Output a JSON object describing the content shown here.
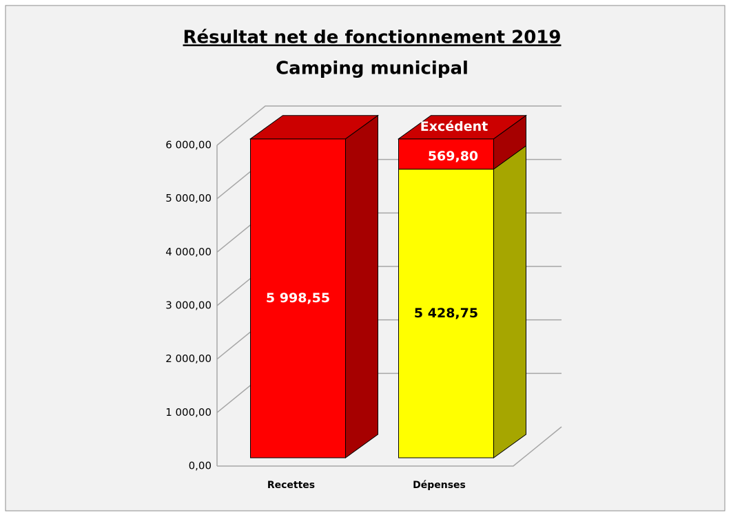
{
  "chart_data": {
    "type": "bar3d_stacked",
    "title": "Résultat net de fonctionnement 2019",
    "subtitle": "Camping municipal",
    "categories": [
      "Recettes",
      "Dépenses"
    ],
    "series": [
      {
        "colors": [
          "#ff0000",
          "#ffff00"
        ],
        "values": [
          5998.55,
          5428.75
        ],
        "value_labels": [
          "5 998,55",
          "5 428,75"
        ],
        "label_colors": [
          "#ffffff",
          "#000000"
        ]
      },
      {
        "name": "Excédent",
        "color": "#ff0000",
        "values": [
          null,
          569.8
        ],
        "value_labels": [
          null,
          "569,80"
        ],
        "label_colors": [
          null,
          "#ffffff"
        ]
      }
    ],
    "ylim": [
      0,
      6000
    ],
    "yticks": [
      {
        "value": 0,
        "label": "0,00"
      },
      {
        "value": 1000,
        "label": "1 000,00"
      },
      {
        "value": 2000,
        "label": "2 000,00"
      },
      {
        "value": 3000,
        "label": "3 000,00"
      },
      {
        "value": 4000,
        "label": "4 000,00"
      },
      {
        "value": 5000,
        "label": "5 000,00"
      },
      {
        "value": 6000,
        "label": "6 000,00"
      }
    ],
    "grid": true
  }
}
